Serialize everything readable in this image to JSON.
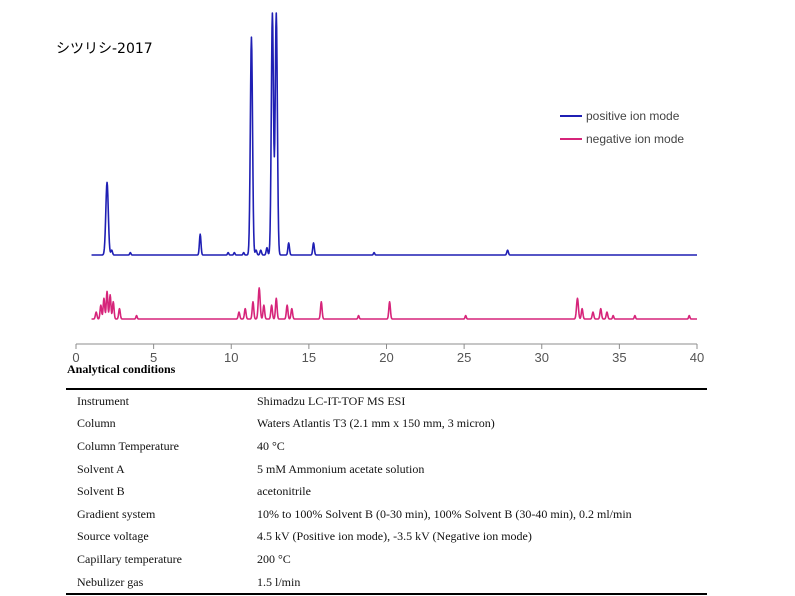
{
  "sample_title": "シツリシ-2017",
  "colors": {
    "positive": "#1f1fb4",
    "negative": "#d6247a",
    "axis": "#8c8c8c"
  },
  "chart_data": {
    "type": "line",
    "title": "シツリシ-2017",
    "xlabel": "",
    "ylabel": "",
    "xlim": [
      0,
      40
    ],
    "x_ticks": [
      0,
      5,
      10,
      15,
      20,
      25,
      30,
      35,
      40
    ],
    "legend": "top-right",
    "series": [
      {
        "name": "positive ion mode",
        "color": "#1f1fb4",
        "baseline_y": 0,
        "peaks": [
          {
            "rt": 2.0,
            "intensity": 0.3,
            "width": 0.08
          },
          {
            "rt": 2.3,
            "intensity": 0.02,
            "width": 0.05
          },
          {
            "rt": 3.5,
            "intensity": 0.01,
            "width": 0.04
          },
          {
            "rt": 8.0,
            "intensity": 0.086,
            "width": 0.05
          },
          {
            "rt": 9.8,
            "intensity": 0.01,
            "width": 0.04
          },
          {
            "rt": 10.2,
            "intensity": 0.01,
            "width": 0.04
          },
          {
            "rt": 10.8,
            "intensity": 0.01,
            "width": 0.04
          },
          {
            "rt": 11.3,
            "intensity": 0.9,
            "width": 0.07
          },
          {
            "rt": 11.6,
            "intensity": 0.02,
            "width": 0.05
          },
          {
            "rt": 11.9,
            "intensity": 0.02,
            "width": 0.05
          },
          {
            "rt": 12.3,
            "intensity": 0.03,
            "width": 0.05
          },
          {
            "rt": 12.65,
            "intensity": 1.0,
            "width": 0.07
          },
          {
            "rt": 12.9,
            "intensity": 1.0,
            "width": 0.07
          },
          {
            "rt": 13.7,
            "intensity": 0.05,
            "width": 0.05
          },
          {
            "rt": 15.3,
            "intensity": 0.05,
            "width": 0.05
          },
          {
            "rt": 19.2,
            "intensity": 0.01,
            "width": 0.04
          },
          {
            "rt": 27.8,
            "intensity": 0.02,
            "width": 0.05
          }
        ]
      },
      {
        "name": "negative ion mode",
        "color": "#d6247a",
        "baseline_y": 0,
        "peaks": [
          {
            "rt": 1.3,
            "intensity": 0.02,
            "width": 0.05
          },
          {
            "rt": 1.6,
            "intensity": 0.04,
            "width": 0.05
          },
          {
            "rt": 1.8,
            "intensity": 0.06,
            "width": 0.05
          },
          {
            "rt": 2.0,
            "intensity": 0.08,
            "width": 0.05
          },
          {
            "rt": 2.2,
            "intensity": 0.07,
            "width": 0.05
          },
          {
            "rt": 2.4,
            "intensity": 0.05,
            "width": 0.05
          },
          {
            "rt": 2.8,
            "intensity": 0.03,
            "width": 0.05
          },
          {
            "rt": 3.9,
            "intensity": 0.01,
            "width": 0.04
          },
          {
            "rt": 10.5,
            "intensity": 0.02,
            "width": 0.05
          },
          {
            "rt": 10.9,
            "intensity": 0.03,
            "width": 0.05
          },
          {
            "rt": 11.4,
            "intensity": 0.05,
            "width": 0.05
          },
          {
            "rt": 11.8,
            "intensity": 0.09,
            "width": 0.06
          },
          {
            "rt": 12.1,
            "intensity": 0.04,
            "width": 0.05
          },
          {
            "rt": 12.6,
            "intensity": 0.04,
            "width": 0.05
          },
          {
            "rt": 12.9,
            "intensity": 0.06,
            "width": 0.05
          },
          {
            "rt": 13.6,
            "intensity": 0.04,
            "width": 0.05
          },
          {
            "rt": 13.9,
            "intensity": 0.03,
            "width": 0.05
          },
          {
            "rt": 15.8,
            "intensity": 0.05,
            "width": 0.05
          },
          {
            "rt": 18.2,
            "intensity": 0.01,
            "width": 0.04
          },
          {
            "rt": 20.2,
            "intensity": 0.05,
            "width": 0.05
          },
          {
            "rt": 25.1,
            "intensity": 0.01,
            "width": 0.04
          },
          {
            "rt": 32.3,
            "intensity": 0.06,
            "width": 0.06
          },
          {
            "rt": 32.6,
            "intensity": 0.03,
            "width": 0.05
          },
          {
            "rt": 33.3,
            "intensity": 0.02,
            "width": 0.05
          },
          {
            "rt": 33.8,
            "intensity": 0.03,
            "width": 0.05
          },
          {
            "rt": 34.2,
            "intensity": 0.02,
            "width": 0.05
          },
          {
            "rt": 34.6,
            "intensity": 0.01,
            "width": 0.04
          },
          {
            "rt": 36.0,
            "intensity": 0.01,
            "width": 0.04
          },
          {
            "rt": 39.5,
            "intensity": 0.01,
            "width": 0.04
          }
        ]
      }
    ]
  },
  "conditions": {
    "heading": "Analytical conditions",
    "rows": [
      {
        "key": "Instrument",
        "value": "Shimadzu LC-IT-TOF MS ESI"
      },
      {
        "key": "Column",
        "value": "Waters Atlantis T3 (2.1 mm x 150 mm, 3 micron)"
      },
      {
        "key": "Column Temperature",
        "value": "40 °C"
      },
      {
        "key": "Solvent A",
        "value": "5 mM Ammonium acetate solution"
      },
      {
        "key": "Solvent B",
        "value": "acetonitrile"
      },
      {
        "key": "Gradient system",
        "value": "10% to 100% Solvent B (0-30 min), 100% Solvent B (30-40 min), 0.2 ml/min"
      },
      {
        "key": "Source voltage",
        "value": "4.5 kV (Positive ion mode), -3.5 kV (Negative ion mode)"
      },
      {
        "key": "Capillary temperature",
        "value": "200 °C"
      },
      {
        "key": "Nebulizer gas",
        "value": "1.5 l/min"
      }
    ]
  }
}
